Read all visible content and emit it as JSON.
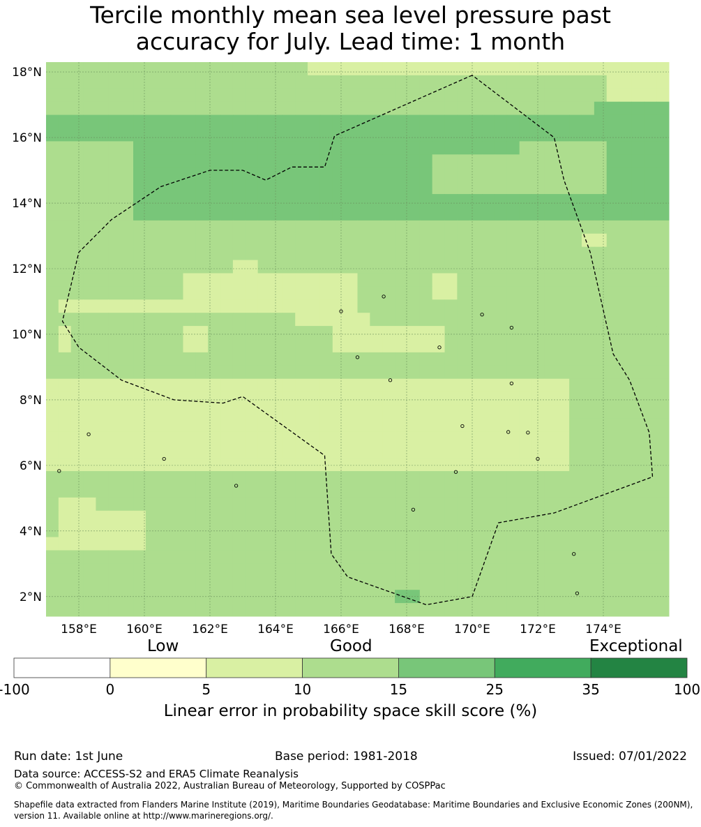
{
  "title_line1": "Tercile monthly mean sea level pressure past",
  "title_line2": "accuracy for July. Lead time: 1 month",
  "map": {
    "lon_range": [
      157,
      176
    ],
    "lat_range": [
      1.4,
      18.3
    ],
    "lat_ticks": [
      {
        "value": 18,
        "label": "18°N"
      },
      {
        "value": 16,
        "label": "16°N"
      },
      {
        "value": 14,
        "label": "14°N"
      },
      {
        "value": 12,
        "label": "12°N"
      },
      {
        "value": 10,
        "label": "10°N"
      },
      {
        "value": 8,
        "label": "8°N"
      },
      {
        "value": 6,
        "label": "6°N"
      },
      {
        "value": 4,
        "label": "4°N"
      },
      {
        "value": 2,
        "label": "2°N"
      }
    ],
    "lon_ticks": [
      {
        "value": 158,
        "label": "158°E"
      },
      {
        "value": 160,
        "label": "160°E"
      },
      {
        "value": 162,
        "label": "162°E"
      },
      {
        "value": 164,
        "label": "164°E"
      },
      {
        "value": 166,
        "label": "166°E"
      },
      {
        "value": 168,
        "label": "168°E"
      },
      {
        "value": 170,
        "label": "170°E"
      },
      {
        "value": 172,
        "label": "172°E"
      },
      {
        "value": 174,
        "label": "174°E"
      }
    ],
    "grid_legend": "1 = 0-5 (pale yellow), 2 = 5-10, 3 = 10-15, 4 = 15-25",
    "grid_rows": [
      "33333333333333333333322222222222222222222222222222",
      "33333333333333333333333333333333333333333333322222",
      "33333333333333333333333333333333333333333333322222",
      "33333333333333333333333333333333333333333333444444",
      "44444444444444444444444444444444444444444444444444",
      "44444444444444444444444444444444444444444444444444",
      "33333334444444444444444444444444444444333333344444",
      "33333334444444444444444444444443333333333333344444",
      "33333334444444444444444444444443333333333333344444",
      "33333334444444444444444444444443333333333333344444",
      "33333334444444444444444444444444444444444444444444",
      "33333334444444444444444444444444444444444444444444",
      "33333333333333333333333333333333333333333333333333",
      "33333333333333333333333333333333333333333332233333",
      "33333333333333333333333333333333333333333333333333",
      "33333333333333322333333333333333333333333333333333",
      "33333333333222222222222223333332233333333333333333",
      "33333333333222222222222223333332233333333333333333",
      "32222222222222222222222223333333333333333333333333",
      "33333333333333333333222222333333333333333333333333",
      "32333333333223333333333222222222333333333333333333",
      "32333333333223333333333222222222333333333333333333",
      "33333333333333333333333333333333333333333333333333",
      "33333333333333333333333333333333333333333333333333",
      "22222222222222222222222222222222222222222233333333",
      "22222222222222222222222222222222222222222233333333",
      "22222222222222222222222222222222222222222233333333",
      "22222222222222222222222222222222222222222233333333",
      "22222222222222222222222222222222222222222233333333",
      "22222222222222222222222222222222222222222233333333",
      "22222222222222222222222222222222222222222233333333",
      "33333333333333333333333333333333333333333333333333",
      "33333333333333333333333333333333333333333333333333",
      "32223333333333333333333333333333333333333333333333",
      "32222222333333333333333333333333333333333333333333",
      "32222222333333333333333333333333333333333333333333",
      "22222222333333333333333333333333333333333333333333",
      "33333333333333333333333333333333333333333333333333",
      "33333333333333333333333333333333333333333333333333",
      "33333333333333333333333333333333333333333333333333",
      "33333333333333333333333333334433333333333333333333",
      "33333333333333333333333333333333333333333333333333"
    ],
    "eez_boundary": [
      [
        170,
        17.9
      ],
      [
        165.8,
        16.05
      ],
      [
        165.5,
        15.1
      ],
      [
        164.5,
        15.1
      ],
      [
        163.7,
        14.7
      ],
      [
        163.0,
        15.0
      ],
      [
        162.0,
        15.0
      ],
      [
        160.5,
        14.5
      ],
      [
        159.0,
        13.5
      ],
      [
        158.0,
        12.5
      ],
      [
        157.5,
        10.4
      ],
      [
        158.0,
        9.6
      ],
      [
        159.3,
        8.6
      ],
      [
        160.9,
        8.0
      ],
      [
        162.4,
        7.9
      ],
      [
        163.0,
        8.1
      ],
      [
        165.5,
        6.3
      ],
      [
        165.7,
        3.3
      ],
      [
        166.2,
        2.6
      ],
      [
        168.6,
        1.75
      ],
      [
        170.0,
        2.0
      ],
      [
        170.8,
        4.25
      ],
      [
        172.5,
        4.55
      ],
      [
        175.5,
        5.65
      ],
      [
        175.4,
        7.0
      ],
      [
        174.8,
        8.6
      ],
      [
        174.3,
        9.4
      ],
      [
        173.6,
        12.5
      ],
      [
        172.8,
        14.7
      ],
      [
        172.5,
        16.0
      ],
      [
        170.0,
        17.9
      ]
    ],
    "islands": [
      [
        158.3,
        6.95
      ],
      [
        162.8,
        5.38
      ],
      [
        160.6,
        6.2
      ],
      [
        157.4,
        5.83
      ],
      [
        166.0,
        10.7
      ],
      [
        167.3,
        11.15
      ],
      [
        169.0,
        9.6
      ],
      [
        171.1,
        7.02
      ],
      [
        171.7,
        7.0
      ],
      [
        172.0,
        6.2
      ],
      [
        169.7,
        7.2
      ],
      [
        170.3,
        10.6
      ],
      [
        173.2,
        2.1
      ],
      [
        173.1,
        3.3
      ],
      [
        168.2,
        4.65
      ],
      [
        167.5,
        8.6
      ],
      [
        166.5,
        9.3
      ],
      [
        169.5,
        5.8
      ],
      [
        171.2,
        8.5
      ],
      [
        171.2,
        10.2
      ]
    ]
  },
  "colorbar": {
    "category_low": "Low",
    "category_good": "Good",
    "category_exceptional": "Exceptional",
    "bins": [
      {
        "from": "-100",
        "to": "0",
        "color": "#ffffff"
      },
      {
        "from": "0",
        "to": "5",
        "color": "#ffffcc"
      },
      {
        "from": "5",
        "to": "10",
        "color": "#d9f0a3"
      },
      {
        "from": "10",
        "to": "15",
        "color": "#addd8e"
      },
      {
        "from": "15",
        "to": "25",
        "color": "#78c679"
      },
      {
        "from": "25",
        "to": "35",
        "color": "#41ab5d"
      },
      {
        "from": "35",
        "to": "100",
        "color": "#238443"
      }
    ],
    "tick_labels": [
      "-100",
      "0",
      "5",
      "10",
      "15",
      "25",
      "35",
      "100"
    ],
    "label": "Linear error in probability space skill score (%)"
  },
  "footer": {
    "run_date": "Run date: 1st June",
    "base_period": "Base period: 1981-2018",
    "issued": "Issued: 07/01/2022",
    "data_source": "Data source: ACCESS-S2 and ERA5 Climate Reanalysis",
    "copyright": "© Commonwealth of Australia 2022, Australian Bureau of Meteorology, Supported by COSPPac",
    "shapefile": "Shapefile data extracted from Flanders Marine Institute (2019), Maritime Boundaries Geodatabase: Maritime Boundaries and Exclusive Economic Zones (200NM), version 11. Available online at http://www.marineregions.org/."
  }
}
